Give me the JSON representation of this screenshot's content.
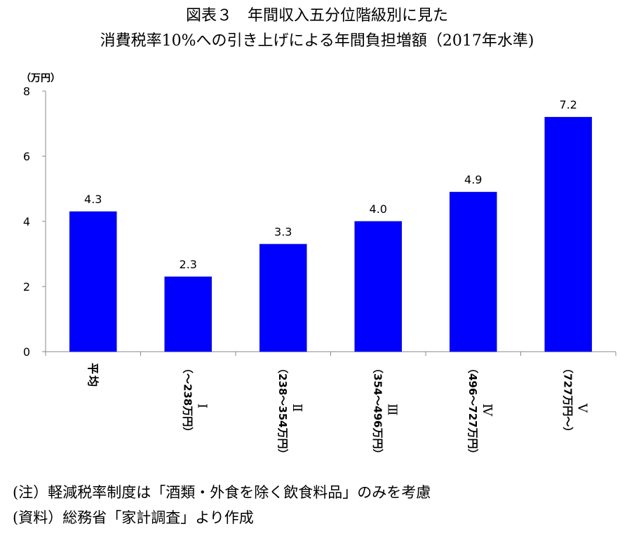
{
  "chart_data": {
    "type": "bar",
    "title": "図表３　年間収入五分位階級別に見た",
    "subtitle": "消費税率10%への引き上げによる年間負担増額（2017年水準)",
    "ylabel": "（万円）",
    "ylim": [
      0,
      8
    ],
    "yticks": [
      "0",
      "2",
      "4",
      "6",
      "8"
    ],
    "grid": false,
    "bar_color": "#0000ff",
    "categories": [
      {
        "main": "平均",
        "sub": ""
      },
      {
        "main": "Ⅰ",
        "sub": "（～238万円）"
      },
      {
        "main": "Ⅱ",
        "sub": "（238～354万円）"
      },
      {
        "main": "Ⅲ",
        "sub": "（354～496万円）"
      },
      {
        "main": "Ⅳ",
        "sub": "（496～727万円）"
      },
      {
        "main": "Ⅴ",
        "sub": "（727万円～）"
      }
    ],
    "values": [
      4.3,
      2.3,
      3.3,
      4.0,
      4.9,
      7.2
    ],
    "value_labels": [
      "4.3",
      "2.3",
      "3.3",
      "4.0",
      "4.9",
      "7.2"
    ]
  },
  "notes": {
    "note": "(注）軽減税率制度は「酒類・外食を除く飲食料品」のみを考慮",
    "source": "(資料）総務省「家計調査」より作成"
  }
}
